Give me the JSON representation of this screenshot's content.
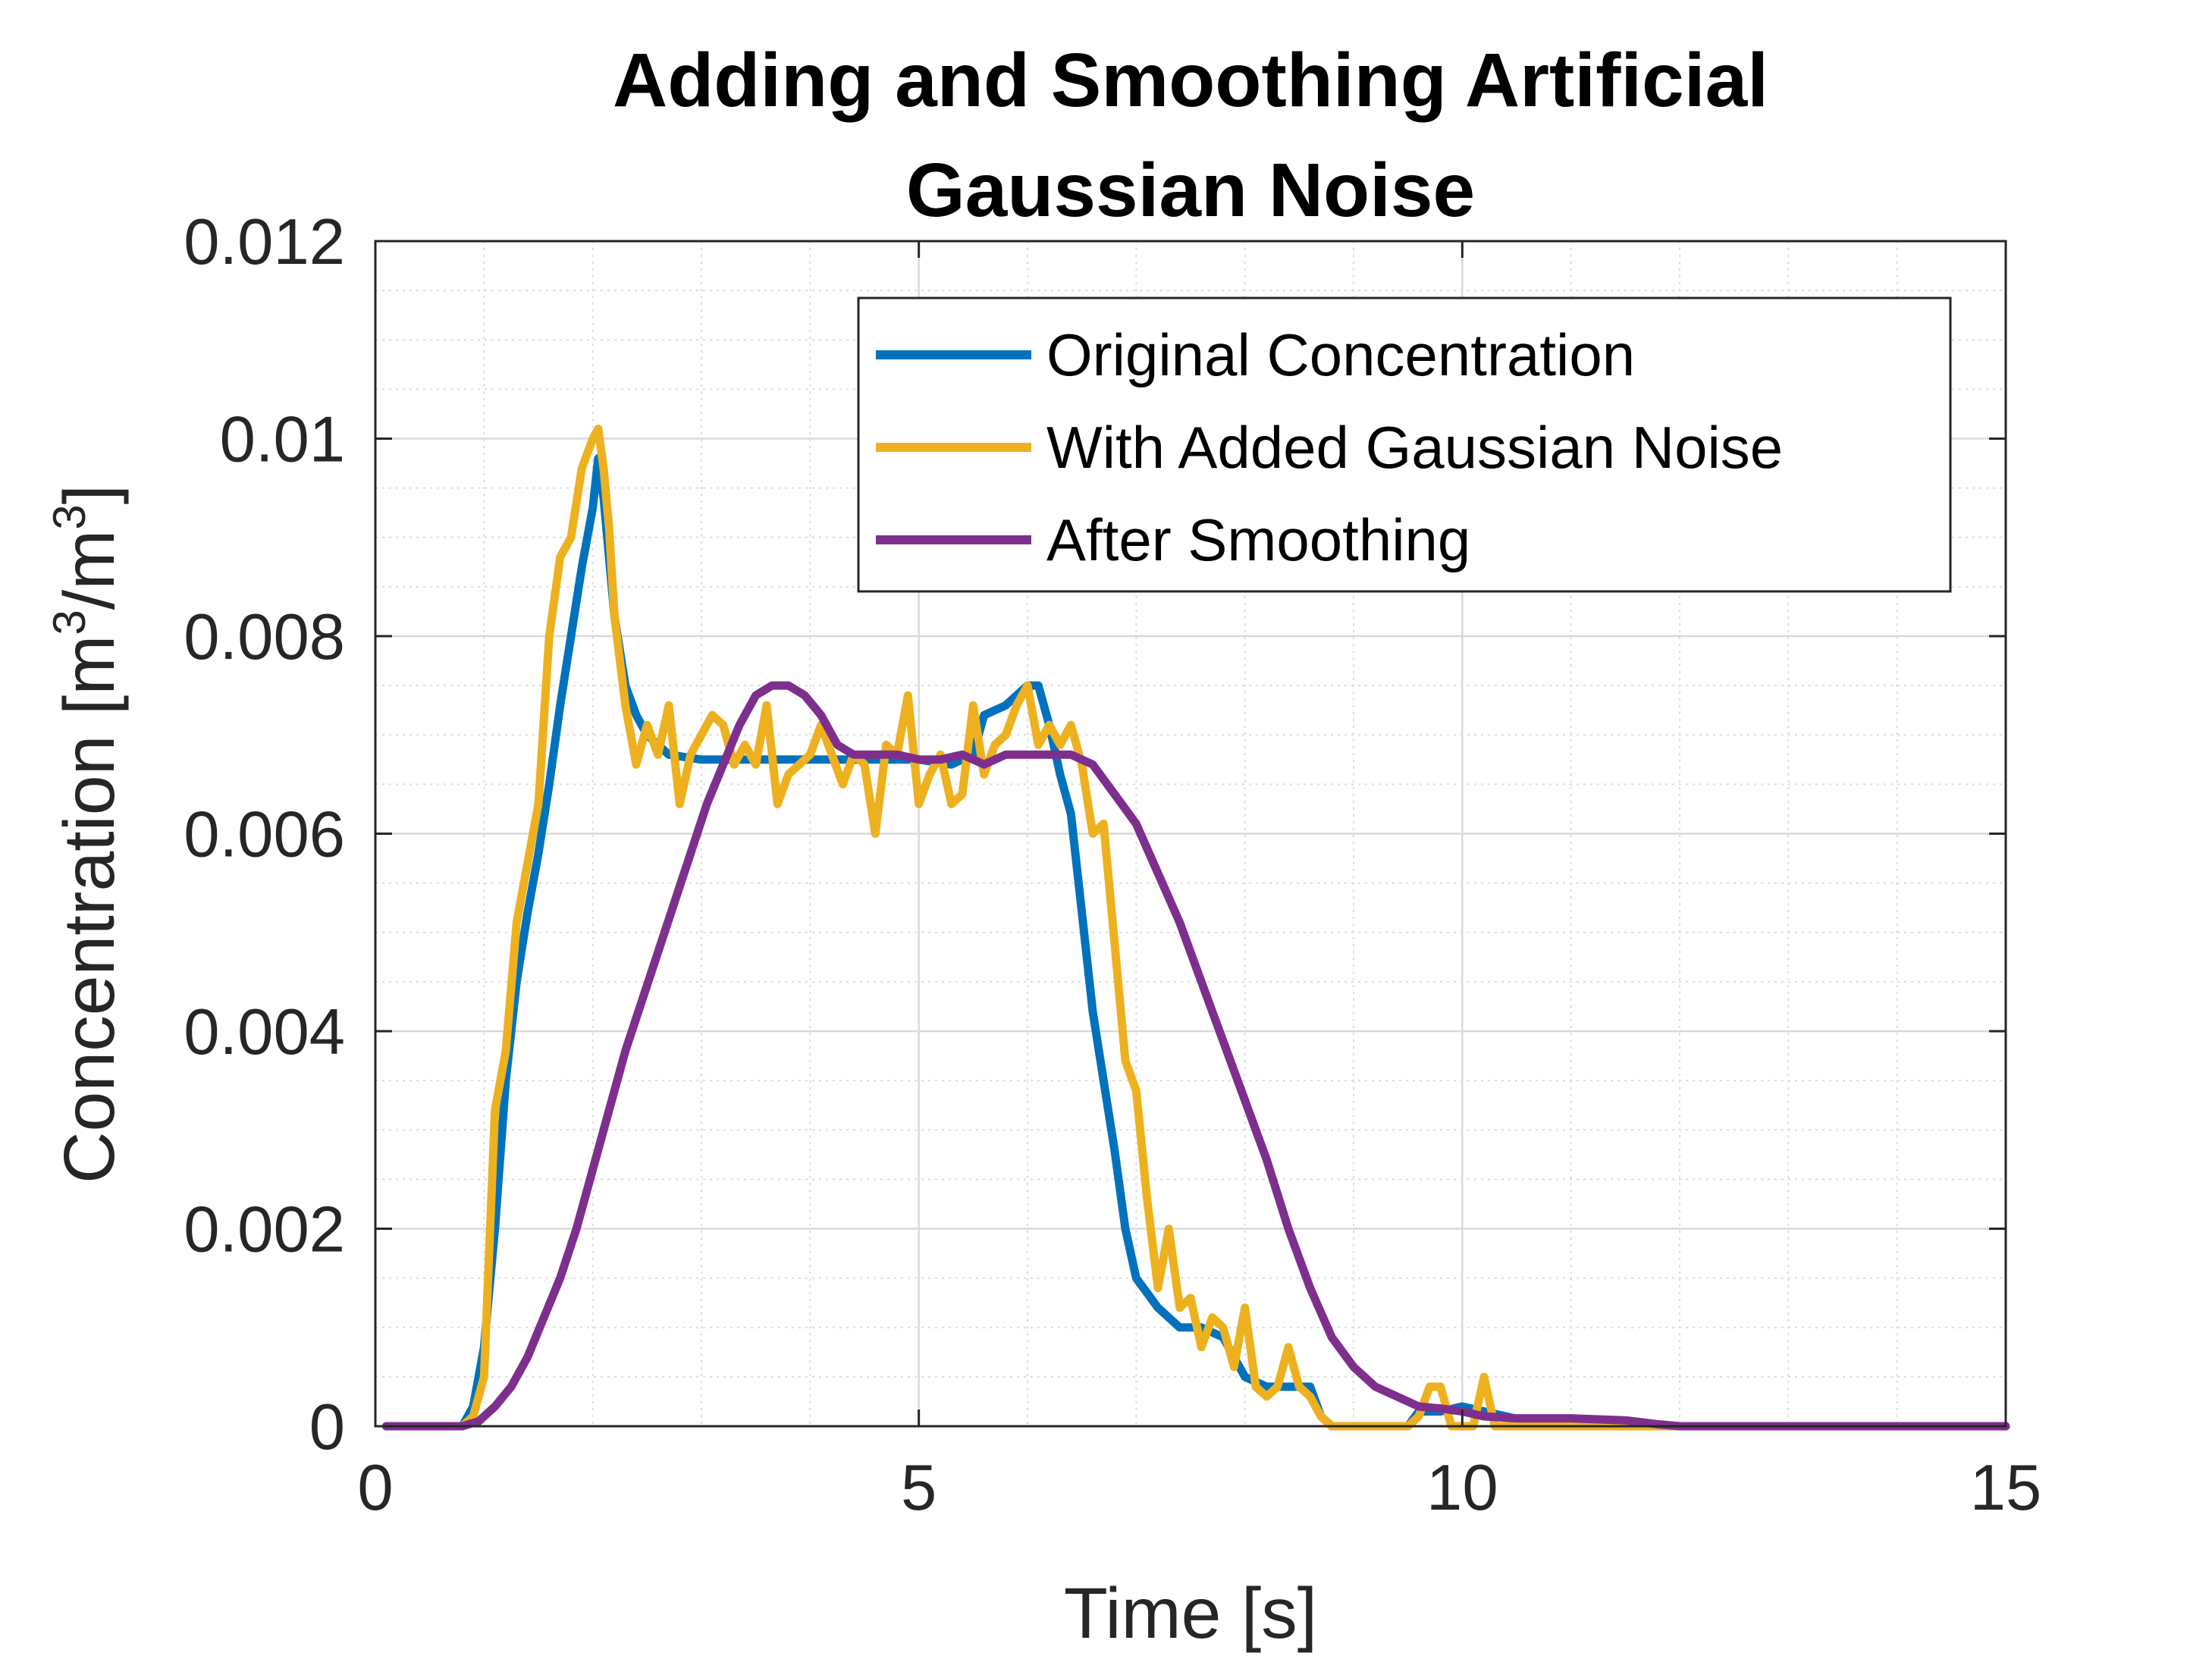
{
  "chart_data": {
    "type": "line",
    "title_lines": [
      "Adding and Smoothing Artificial",
      "Gaussian Noise"
    ],
    "xlabel": "Time [s]",
    "ylabel": {
      "prefix": "Concentration [m",
      "sup1": "3",
      "mid": "/m",
      "sup2": "3",
      "suffix": "]"
    },
    "xlim": [
      0,
      15
    ],
    "ylim": [
      0,
      0.012
    ],
    "xticks": [
      0,
      5,
      10,
      15
    ],
    "xtick_labels": [
      "0",
      "5",
      "10",
      "15"
    ],
    "yticks": [
      0,
      0.002,
      0.004,
      0.006,
      0.008,
      0.01,
      0.012
    ],
    "ytick_labels": [
      "0",
      "0.002",
      "0.004",
      "0.006",
      "0.008",
      "0.01",
      "0.012"
    ],
    "grid": true,
    "minor_grid": true,
    "legend_position": "top-right",
    "series": [
      {
        "name": "Original Concentration",
        "color": "#0072BD",
        "points": [
          [
            0.1,
            0
          ],
          [
            0.5,
            0
          ],
          [
            0.8,
            0
          ],
          [
            0.9,
            0.0002
          ],
          [
            1.0,
            0.0008
          ],
          [
            1.1,
            0.002
          ],
          [
            1.2,
            0.0035
          ],
          [
            1.3,
            0.0045
          ],
          [
            1.4,
            0.0052
          ],
          [
            1.5,
            0.0058
          ],
          [
            1.6,
            0.0065
          ],
          [
            1.7,
            0.0073
          ],
          [
            1.8,
            0.008
          ],
          [
            1.9,
            0.0087
          ],
          [
            2.0,
            0.0093
          ],
          [
            2.05,
            0.0098
          ],
          [
            2.1,
            0.0094
          ],
          [
            2.2,
            0.0082
          ],
          [
            2.3,
            0.0075
          ],
          [
            2.4,
            0.0072
          ],
          [
            2.5,
            0.007
          ],
          [
            2.6,
            0.0069
          ],
          [
            2.7,
            0.0068
          ],
          [
            3.0,
            0.00675
          ],
          [
            4.0,
            0.00675
          ],
          [
            5.0,
            0.00675
          ],
          [
            5.3,
            0.0067
          ],
          [
            5.5,
            0.0068
          ],
          [
            5.6,
            0.0072
          ],
          [
            5.8,
            0.0073
          ],
          [
            6.0,
            0.0075
          ],
          [
            6.1,
            0.0075
          ],
          [
            6.2,
            0.0071
          ],
          [
            6.3,
            0.0066
          ],
          [
            6.4,
            0.0062
          ],
          [
            6.5,
            0.0052
          ],
          [
            6.6,
            0.0042
          ],
          [
            6.7,
            0.0035
          ],
          [
            6.8,
            0.0028
          ],
          [
            6.9,
            0.002
          ],
          [
            7.0,
            0.0015
          ],
          [
            7.2,
            0.0012
          ],
          [
            7.4,
            0.001
          ],
          [
            7.6,
            0.001
          ],
          [
            7.8,
            0.0009
          ],
          [
            8.0,
            0.0005
          ],
          [
            8.2,
            0.0004
          ],
          [
            8.4,
            0.0004
          ],
          [
            8.6,
            0.0004
          ],
          [
            8.7,
            0.0001
          ],
          [
            8.8,
            0
          ],
          [
            9.5,
            0
          ],
          [
            9.6,
            0.00015
          ],
          [
            9.8,
            0.00015
          ],
          [
            10.0,
            0.0002
          ],
          [
            10.2,
            0.00015
          ],
          [
            10.4,
            0.0001
          ],
          [
            10.6,
            5e-05
          ],
          [
            11.0,
            0
          ],
          [
            15.0,
            0
          ]
        ]
      },
      {
        "name": "With Added Gaussian Noise",
        "color": "#EDB120",
        "points": [
          [
            0.1,
            0
          ],
          [
            0.5,
            0
          ],
          [
            0.8,
            0
          ],
          [
            0.9,
            0.0001
          ],
          [
            1.0,
            0.0005
          ],
          [
            1.1,
            0.0032
          ],
          [
            1.2,
            0.0038
          ],
          [
            1.3,
            0.0051
          ],
          [
            1.4,
            0.0057
          ],
          [
            1.5,
            0.0063
          ],
          [
            1.6,
            0.008
          ],
          [
            1.7,
            0.0088
          ],
          [
            1.8,
            0.009
          ],
          [
            1.9,
            0.0097
          ],
          [
            2.0,
            0.01
          ],
          [
            2.05,
            0.0101
          ],
          [
            2.1,
            0.0097
          ],
          [
            2.15,
            0.0091
          ],
          [
            2.2,
            0.0082
          ],
          [
            2.3,
            0.0073
          ],
          [
            2.4,
            0.0067
          ],
          [
            2.5,
            0.0071
          ],
          [
            2.6,
            0.0068
          ],
          [
            2.7,
            0.0073
          ],
          [
            2.8,
            0.0063
          ],
          [
            2.9,
            0.0068
          ],
          [
            3.0,
            0.007
          ],
          [
            3.1,
            0.0072
          ],
          [
            3.2,
            0.0071
          ],
          [
            3.3,
            0.0067
          ],
          [
            3.4,
            0.0069
          ],
          [
            3.5,
            0.0067
          ],
          [
            3.6,
            0.0073
          ],
          [
            3.7,
            0.0063
          ],
          [
            3.8,
            0.0066
          ],
          [
            3.9,
            0.0067
          ],
          [
            4.0,
            0.0068
          ],
          [
            4.1,
            0.0071
          ],
          [
            4.2,
            0.0068
          ],
          [
            4.3,
            0.0065
          ],
          [
            4.4,
            0.0068
          ],
          [
            4.5,
            0.0067
          ],
          [
            4.6,
            0.006
          ],
          [
            4.7,
            0.0069
          ],
          [
            4.8,
            0.0068
          ],
          [
            4.9,
            0.0074
          ],
          [
            5.0,
            0.0063
          ],
          [
            5.1,
            0.0066
          ],
          [
            5.2,
            0.0068
          ],
          [
            5.3,
            0.0063
          ],
          [
            5.4,
            0.0064
          ],
          [
            5.5,
            0.0073
          ],
          [
            5.6,
            0.0066
          ],
          [
            5.7,
            0.0069
          ],
          [
            5.8,
            0.007
          ],
          [
            5.9,
            0.0073
          ],
          [
            6.0,
            0.0075
          ],
          [
            6.1,
            0.0069
          ],
          [
            6.2,
            0.0071
          ],
          [
            6.3,
            0.0069
          ],
          [
            6.4,
            0.0071
          ],
          [
            6.5,
            0.0067
          ],
          [
            6.6,
            0.006
          ],
          [
            6.7,
            0.0061
          ],
          [
            6.8,
            0.0049
          ],
          [
            6.9,
            0.0037
          ],
          [
            7.0,
            0.0034
          ],
          [
            7.1,
            0.0023
          ],
          [
            7.2,
            0.0014
          ],
          [
            7.3,
            0.002
          ],
          [
            7.4,
            0.0012
          ],
          [
            7.5,
            0.0013
          ],
          [
            7.6,
            0.0008
          ],
          [
            7.7,
            0.0011
          ],
          [
            7.8,
            0.001
          ],
          [
            7.9,
            0.0006
          ],
          [
            8.0,
            0.0012
          ],
          [
            8.1,
            0.0004
          ],
          [
            8.2,
            0.0003
          ],
          [
            8.3,
            0.0004
          ],
          [
            8.4,
            0.0008
          ],
          [
            8.5,
            0.0004
          ],
          [
            8.6,
            0.0003
          ],
          [
            8.7,
            0.0001
          ],
          [
            8.8,
            0
          ],
          [
            9.5,
            0
          ],
          [
            9.6,
            0.0001
          ],
          [
            9.7,
            0.0004
          ],
          [
            9.8,
            0.0004
          ],
          [
            9.9,
            0
          ],
          [
            10.0,
            0
          ],
          [
            10.1,
            0
          ],
          [
            10.2,
            0.0005
          ],
          [
            10.3,
            0
          ],
          [
            10.5,
            0
          ],
          [
            11.0,
            0
          ],
          [
            12.0,
            0
          ],
          [
            15.0,
            0
          ]
        ]
      },
      {
        "name": "After Smoothing",
        "color": "#7E2F8E",
        "points": [
          [
            0.1,
            0
          ],
          [
            0.5,
            0
          ],
          [
            0.8,
            0
          ],
          [
            0.95,
            5e-05
          ],
          [
            1.1,
            0.0002
          ],
          [
            1.25,
            0.0004
          ],
          [
            1.4,
            0.0007
          ],
          [
            1.55,
            0.0011
          ],
          [
            1.7,
            0.0015
          ],
          [
            1.85,
            0.002
          ],
          [
            2.0,
            0.0026
          ],
          [
            2.15,
            0.0032
          ],
          [
            2.3,
            0.0038
          ],
          [
            2.45,
            0.0043
          ],
          [
            2.6,
            0.0048
          ],
          [
            2.75,
            0.0053
          ],
          [
            2.9,
            0.0058
          ],
          [
            3.05,
            0.0063
          ],
          [
            3.2,
            0.0067
          ],
          [
            3.35,
            0.0071
          ],
          [
            3.5,
            0.0074
          ],
          [
            3.65,
            0.0075
          ],
          [
            3.8,
            0.0075
          ],
          [
            3.95,
            0.0074
          ],
          [
            4.1,
            0.0072
          ],
          [
            4.25,
            0.0069
          ],
          [
            4.4,
            0.0068
          ],
          [
            4.6,
            0.0068
          ],
          [
            4.8,
            0.0068
          ],
          [
            5.0,
            0.00675
          ],
          [
            5.2,
            0.00675
          ],
          [
            5.4,
            0.0068
          ],
          [
            5.6,
            0.0067
          ],
          [
            5.8,
            0.0068
          ],
          [
            6.0,
            0.0068
          ],
          [
            6.2,
            0.0068
          ],
          [
            6.4,
            0.0068
          ],
          [
            6.6,
            0.0067
          ],
          [
            6.8,
            0.0064
          ],
          [
            7.0,
            0.0061
          ],
          [
            7.2,
            0.0056
          ],
          [
            7.4,
            0.0051
          ],
          [
            7.6,
            0.0045
          ],
          [
            7.8,
            0.0039
          ],
          [
            8.0,
            0.0033
          ],
          [
            8.2,
            0.0027
          ],
          [
            8.4,
            0.002
          ],
          [
            8.6,
            0.0014
          ],
          [
            8.8,
            0.0009
          ],
          [
            9.0,
            0.0006
          ],
          [
            9.2,
            0.0004
          ],
          [
            9.4,
            0.0003
          ],
          [
            9.6,
            0.0002
          ],
          [
            9.8,
            0.00018
          ],
          [
            10.0,
            0.00015
          ],
          [
            10.2,
            0.0001
          ],
          [
            10.5,
            8e-05
          ],
          [
            11.0,
            8e-05
          ],
          [
            11.5,
            6e-05
          ],
          [
            11.8,
            2e-05
          ],
          [
            12.0,
            0
          ],
          [
            15.0,
            0
          ]
        ]
      }
    ]
  }
}
